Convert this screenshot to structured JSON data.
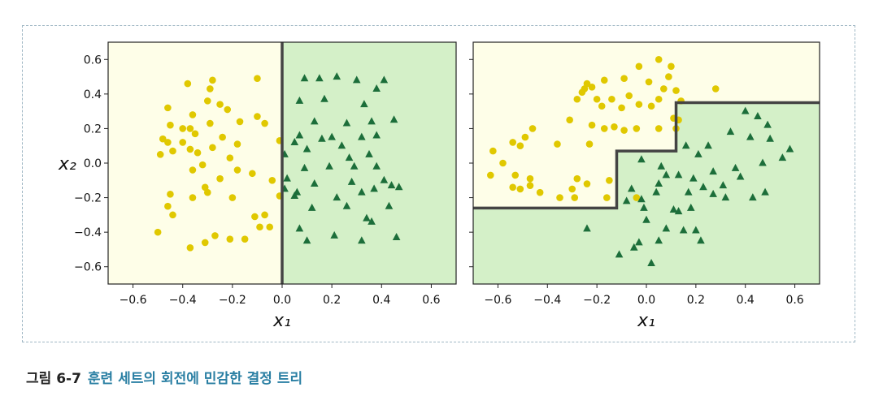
{
  "figure": {
    "caption_label": "그림 6-7",
    "caption_text": "훈련 세트의 회전에 민감한 결정 트리"
  },
  "colors": {
    "class0_region": "#fefee8",
    "class1_region": "#d4f0c8",
    "class0_marker": "#e0c800",
    "class1_marker": "#1c6e3a",
    "boundary": "#444444"
  },
  "chart_data": [
    {
      "type": "scatter",
      "xlabel": "x₁",
      "ylabel": "x₂",
      "xlim": [
        -0.7,
        0.7
      ],
      "ylim": [
        -0.7,
        0.7
      ],
      "xticks": [
        "−0.6",
        "−0.4",
        "−0.2",
        "0.0",
        "0.2",
        "0.4",
        "0.6"
      ],
      "yticks": [
        "0.6",
        "0.4",
        "0.2",
        "0.0",
        "−0.2",
        "−0.4",
        "−0.6"
      ],
      "xtick_values": [
        -0.6,
        -0.4,
        -0.2,
        0.0,
        0.2,
        0.4,
        0.6
      ],
      "ytick_values": [
        0.6,
        0.4,
        0.2,
        0.0,
        -0.2,
        -0.4,
        -0.6
      ],
      "boundary": {
        "x": [
          0.0,
          0.0
        ],
        "y": [
          -0.7,
          0.7
        ]
      },
      "class1_region_side": "right",
      "series": [
        {
          "marker": "circle",
          "points": [
            [
              -0.38,
              0.46
            ],
            [
              -0.28,
              0.48
            ],
            [
              -0.1,
              0.49
            ],
            [
              -0.29,
              0.43
            ],
            [
              -0.46,
              0.32
            ],
            [
              -0.3,
              0.36
            ],
            [
              -0.25,
              0.34
            ],
            [
              -0.22,
              0.31
            ],
            [
              -0.36,
              0.28
            ],
            [
              -0.4,
              0.2
            ],
            [
              -0.29,
              0.23
            ],
            [
              -0.17,
              0.24
            ],
            [
              -0.1,
              0.27
            ],
            [
              -0.07,
              0.23
            ],
            [
              -0.45,
              0.22
            ],
            [
              -0.37,
              0.2
            ],
            [
              -0.35,
              0.17
            ],
            [
              -0.24,
              0.15
            ],
            [
              -0.48,
              0.14
            ],
            [
              -0.46,
              0.12
            ],
            [
              -0.4,
              0.12
            ],
            [
              -0.18,
              0.11
            ],
            [
              -0.28,
              0.09
            ],
            [
              -0.37,
              0.08
            ],
            [
              -0.44,
              0.07
            ],
            [
              -0.49,
              0.05
            ],
            [
              -0.34,
              0.06
            ],
            [
              -0.21,
              0.03
            ],
            [
              -0.32,
              -0.01
            ],
            [
              -0.36,
              -0.04
            ],
            [
              -0.18,
              -0.04
            ],
            [
              -0.12,
              -0.06
            ],
            [
              -0.25,
              -0.09
            ],
            [
              -0.31,
              -0.14
            ],
            [
              -0.45,
              -0.18
            ],
            [
              -0.3,
              -0.17
            ],
            [
              -0.2,
              -0.2
            ],
            [
              -0.36,
              -0.2
            ],
            [
              -0.44,
              -0.3
            ],
            [
              -0.07,
              -0.3
            ],
            [
              -0.05,
              -0.37
            ],
            [
              -0.09,
              -0.37
            ],
            [
              -0.5,
              -0.4
            ],
            [
              -0.27,
              -0.42
            ],
            [
              -0.37,
              -0.49
            ],
            [
              -0.31,
              -0.46
            ],
            [
              -0.21,
              -0.44
            ],
            [
              -0.01,
              -0.19
            ],
            [
              -0.04,
              -0.1
            ],
            [
              -0.01,
              0.13
            ],
            [
              -0.15,
              -0.44
            ],
            [
              -0.46,
              -0.25
            ],
            [
              -0.11,
              -0.31
            ]
          ]
        },
        {
          "marker": "triangle",
          "points": [
            [
              0.09,
              0.49
            ],
            [
              0.15,
              0.49
            ],
            [
              0.22,
              0.5
            ],
            [
              0.3,
              0.48
            ],
            [
              0.41,
              0.48
            ],
            [
              0.38,
              0.43
            ],
            [
              0.17,
              0.37
            ],
            [
              0.07,
              0.36
            ],
            [
              0.33,
              0.34
            ],
            [
              0.13,
              0.24
            ],
            [
              0.26,
              0.23
            ],
            [
              0.36,
              0.24
            ],
            [
              0.45,
              0.25
            ],
            [
              0.2,
              0.15
            ],
            [
              0.07,
              0.16
            ],
            [
              0.16,
              0.14
            ],
            [
              0.32,
              0.15
            ],
            [
              0.38,
              0.16
            ],
            [
              0.05,
              0.12
            ],
            [
              0.1,
              0.08
            ],
            [
              0.24,
              0.1
            ],
            [
              0.35,
              0.05
            ],
            [
              0.01,
              0.05
            ],
            [
              0.27,
              0.03
            ],
            [
              0.19,
              -0.02
            ],
            [
              0.38,
              -0.02
            ],
            [
              0.09,
              -0.03
            ],
            [
              0.02,
              -0.09
            ],
            [
              0.13,
              -0.12
            ],
            [
              0.28,
              -0.11
            ],
            [
              0.41,
              -0.1
            ],
            [
              0.37,
              -0.15
            ],
            [
              0.44,
              -0.13
            ],
            [
              0.47,
              -0.14
            ],
            [
              0.06,
              -0.17
            ],
            [
              0.32,
              -0.17
            ],
            [
              0.22,
              -0.2
            ],
            [
              0.12,
              -0.26
            ],
            [
              0.26,
              -0.25
            ],
            [
              0.43,
              -0.25
            ],
            [
              0.34,
              -0.32
            ],
            [
              0.36,
              -0.34
            ],
            [
              0.07,
              -0.38
            ],
            [
              0.21,
              -0.42
            ],
            [
              0.32,
              -0.45
            ],
            [
              0.1,
              -0.45
            ],
            [
              0.46,
              -0.43
            ],
            [
              0.05,
              -0.19
            ],
            [
              0.01,
              -0.15
            ],
            [
              0.29,
              -0.02
            ]
          ]
        }
      ]
    },
    {
      "type": "scatter",
      "xlabel": "x₁",
      "ylabel": "",
      "xlim": [
        -0.7,
        0.7
      ],
      "ylim": [
        -0.7,
        0.7
      ],
      "xticks": [
        "−0.6",
        "−0.4",
        "−0.2",
        "0.0",
        "0.2",
        "0.4",
        "0.6"
      ],
      "yticks": [],
      "xtick_values": [
        -0.6,
        -0.4,
        -0.2,
        0.0,
        0.2,
        0.4,
        0.6
      ],
      "ytick_values": [
        0.6,
        0.4,
        0.2,
        0.0,
        -0.2,
        -0.4,
        -0.6
      ],
      "boundary": {
        "x": [
          -0.7,
          -0.12,
          -0.12,
          0.12,
          0.12,
          0.7
        ],
        "y": [
          -0.26,
          -0.26,
          0.07,
          0.07,
          0.35,
          0.35
        ]
      },
      "class1_region_side": "below",
      "series": [
        {
          "marker": "circle",
          "points": [
            [
              -0.03,
              0.56
            ],
            [
              0.05,
              0.6
            ],
            [
              0.09,
              0.5
            ],
            [
              0.1,
              0.56
            ],
            [
              0.28,
              0.43
            ],
            [
              -0.25,
              0.43
            ],
            [
              -0.24,
              0.46
            ],
            [
              -0.22,
              0.44
            ],
            [
              -0.17,
              0.48
            ],
            [
              -0.09,
              0.49
            ],
            [
              0.01,
              0.47
            ],
            [
              0.07,
              0.43
            ],
            [
              0.12,
              0.42
            ],
            [
              -0.26,
              0.41
            ],
            [
              -0.28,
              0.37
            ],
            [
              -0.2,
              0.37
            ],
            [
              -0.14,
              0.37
            ],
            [
              -0.07,
              0.39
            ],
            [
              0.05,
              0.37
            ],
            [
              0.14,
              0.36
            ],
            [
              -0.18,
              0.33
            ],
            [
              -0.1,
              0.32
            ],
            [
              -0.03,
              0.34
            ],
            [
              0.02,
              0.33
            ],
            [
              0.11,
              0.26
            ],
            [
              -0.22,
              0.22
            ],
            [
              -0.13,
              0.21
            ],
            [
              -0.17,
              0.2
            ],
            [
              -0.09,
              0.19
            ],
            [
              -0.04,
              0.2
            ],
            [
              0.05,
              0.2
            ],
            [
              -0.31,
              0.25
            ],
            [
              -0.46,
              0.2
            ],
            [
              -0.49,
              0.15
            ],
            [
              -0.54,
              0.12
            ],
            [
              -0.51,
              0.1
            ],
            [
              -0.36,
              0.11
            ],
            [
              -0.23,
              0.11
            ],
            [
              -0.62,
              0.07
            ],
            [
              -0.58,
              0.0
            ],
            [
              -0.63,
              -0.07
            ],
            [
              -0.53,
              -0.07
            ],
            [
              -0.47,
              -0.09
            ],
            [
              -0.28,
              -0.09
            ],
            [
              -0.54,
              -0.14
            ],
            [
              -0.51,
              -0.15
            ],
            [
              -0.47,
              -0.13
            ],
            [
              -0.43,
              -0.17
            ],
            [
              -0.35,
              -0.2
            ],
            [
              -0.29,
              -0.2
            ],
            [
              -0.24,
              -0.12
            ],
            [
              -0.15,
              -0.1
            ],
            [
              -0.16,
              -0.2
            ],
            [
              -0.3,
              -0.15
            ],
            [
              0.13,
              0.25
            ],
            [
              0.12,
              0.2
            ],
            [
              -0.04,
              -0.2
            ]
          ]
        },
        {
          "marker": "triangle",
          "points": [
            [
              0.4,
              0.3
            ],
            [
              0.45,
              0.27
            ],
            [
              0.49,
              0.22
            ],
            [
              0.34,
              0.18
            ],
            [
              0.42,
              0.15
            ],
            [
              0.5,
              0.14
            ],
            [
              0.25,
              0.1
            ],
            [
              0.16,
              0.1
            ],
            [
              0.21,
              0.05
            ],
            [
              0.58,
              0.08
            ],
            [
              0.55,
              0.03
            ],
            [
              0.47,
              0.0
            ],
            [
              0.36,
              -0.03
            ],
            [
              0.27,
              -0.05
            ],
            [
              0.13,
              -0.07
            ],
            [
              -0.02,
              0.02
            ],
            [
              0.06,
              -0.02
            ],
            [
              0.08,
              -0.07
            ],
            [
              0.19,
              -0.09
            ],
            [
              0.23,
              -0.14
            ],
            [
              0.05,
              -0.12
            ],
            [
              0.04,
              -0.17
            ],
            [
              0.17,
              -0.17
            ],
            [
              0.31,
              -0.13
            ],
            [
              0.48,
              -0.17
            ],
            [
              0.43,
              -0.2
            ],
            [
              0.32,
              -0.2
            ],
            [
              0.27,
              -0.18
            ],
            [
              -0.01,
              -0.26
            ],
            [
              0.11,
              -0.27
            ],
            [
              0.13,
              -0.28
            ],
            [
              0.18,
              -0.26
            ],
            [
              -0.08,
              -0.22
            ],
            [
              0.0,
              -0.33
            ],
            [
              0.08,
              -0.38
            ],
            [
              0.2,
              -0.39
            ],
            [
              0.22,
              -0.45
            ],
            [
              -0.03,
              -0.46
            ],
            [
              -0.24,
              -0.38
            ],
            [
              -0.11,
              -0.53
            ],
            [
              0.05,
              -0.45
            ],
            [
              -0.05,
              -0.49
            ],
            [
              0.02,
              -0.58
            ],
            [
              0.15,
              -0.39
            ],
            [
              -0.02,
              -0.21
            ],
            [
              -0.06,
              -0.15
            ],
            [
              0.38,
              -0.08
            ]
          ]
        }
      ]
    }
  ]
}
